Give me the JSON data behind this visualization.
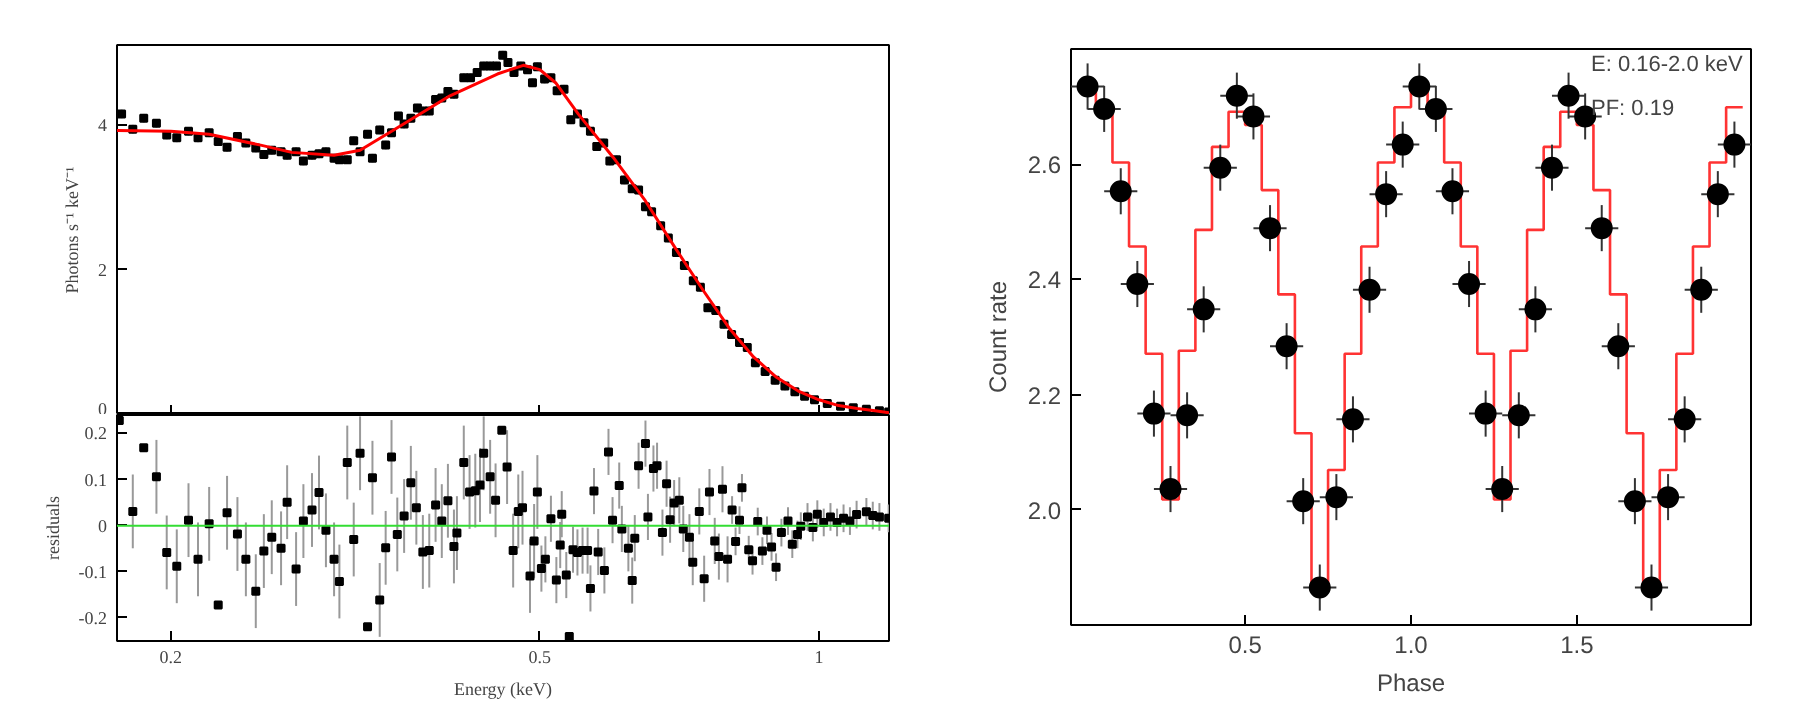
{
  "chart_data": [
    {
      "type": "scatter",
      "ylabel": "Photons s⁻¹ keV⁻¹",
      "log": "x",
      "xlim": [
        0.175,
        1.19
      ],
      "ylim": [
        0,
        5.1
      ],
      "xticks": [
        {
          "value": 0.2,
          "label": null
        },
        {
          "value": 0.5,
          "label": null
        },
        {
          "value": 1,
          "label": null
        }
      ],
      "yticks": [
        0,
        2,
        4
      ],
      "tick_labels": "y",
      "series": [
        {
          "marker": "square",
          "color": "#000000",
          "x": [
            0.177,
            0.182,
            0.187,
            0.193,
            0.198,
            0.203,
            0.209,
            0.214,
            0.22,
            0.225,
            0.23,
            0.236,
            0.241,
            0.247,
            0.252,
            0.257,
            0.263,
            0.267,
            0.273,
            0.278,
            0.284,
            0.289,
            0.294,
            0.3,
            0.304,
            0.31,
            0.315,
            0.32,
            0.326,
            0.33,
            0.336,
            0.341,
            0.346,
            0.352,
            0.357,
            0.363,
            0.369,
            0.374,
            0.38,
            0.386,
            0.392,
            0.398,
            0.404,
            0.414,
            0.421,
            0.428,
            0.435,
            0.442,
            0.449,
            0.456,
            0.462,
            0.469,
            0.477,
            0.485,
            0.491,
            0.497,
            0.506,
            0.514,
            0.522,
            0.531,
            0.54,
            0.549,
            0.558,
            0.567,
            0.576,
            0.586,
            0.595,
            0.605,
            0.617,
            0.629,
            0.639,
            0.65,
            0.66,
            0.675,
            0.688,
            0.702,
            0.716,
            0.732,
            0.745,
            0.759,
            0.774,
            0.79,
            0.805,
            0.821,
            0.837,
            0.854,
            0.875,
            0.897,
            0.919,
            0.942,
            0.965,
            0.989,
            1.021,
            1.055,
            1.089,
            1.125,
            1.162,
            1.189
          ],
          "values": [
            4.15,
            3.94,
            4.09,
            4.02,
            3.86,
            3.82,
            3.91,
            3.82,
            3.89,
            3.77,
            3.69,
            3.84,
            3.75,
            3.68,
            3.59,
            3.65,
            3.63,
            3.58,
            3.63,
            3.5,
            3.58,
            3.6,
            3.63,
            3.54,
            3.52,
            3.52,
            3.78,
            3.63,
            3.87,
            3.54,
            3.93,
            3.72,
            3.89,
            4.12,
            4.01,
            4.09,
            4.23,
            4.19,
            4.19,
            4.35,
            4.37,
            4.46,
            4.42,
            4.65,
            4.65,
            4.72,
            4.81,
            4.81,
            4.81,
            4.96,
            4.86,
            4.72,
            4.81,
            4.76,
            4.58,
            4.8,
            4.63,
            4.65,
            4.47,
            4.49,
            4.07,
            4.15,
            4.03,
            3.91,
            3.7,
            3.75,
            3.5,
            3.52,
            3.24,
            3.12,
            3.1,
            2.87,
            2.8,
            2.61,
            2.44,
            2.24,
            2.06,
            1.85,
            1.76,
            1.48,
            1.44,
            1.25,
            1.11,
            1.0,
            0.93,
            0.72,
            0.6,
            0.48,
            0.4,
            0.32,
            0.26,
            0.21,
            0.16,
            0.12,
            0.1,
            0.08,
            0.06,
            0.04
          ],
          "errors": [
            0.06,
            0.06,
            0.06,
            0.06,
            0.06,
            0.06,
            0.06,
            0.06,
            0.06,
            0.06,
            0.06,
            0.06,
            0.06,
            0.06,
            0.06,
            0.06,
            0.06,
            0.06,
            0.06,
            0.06,
            0.06,
            0.06,
            0.06,
            0.06,
            0.06,
            0.06,
            0.06,
            0.06,
            0.06,
            0.06,
            0.06,
            0.06,
            0.06,
            0.06,
            0.06,
            0.06,
            0.06,
            0.06,
            0.06,
            0.06,
            0.06,
            0.06,
            0.06,
            0.06,
            0.06,
            0.06,
            0.06,
            0.06,
            0.06,
            0.06,
            0.06,
            0.06,
            0.06,
            0.06,
            0.06,
            0.06,
            0.06,
            0.06,
            0.06,
            0.06,
            0.06,
            0.06,
            0.06,
            0.06,
            0.06,
            0.06,
            0.06,
            0.06,
            0.06,
            0.06,
            0.06,
            0.06,
            0.06,
            0.06,
            0.06,
            0.06,
            0.06,
            0.06,
            0.06,
            0.06,
            0.06,
            0.06,
            0.06,
            0.06,
            0.06,
            0.06,
            0.06,
            0.06,
            0.06,
            0.06,
            0.03,
            0.03,
            0.03,
            0.03,
            0.03,
            0.03,
            0.03,
            0.03
          ]
        },
        {
          "type": "line",
          "color": "#ff0000",
          "x": [
            0.175,
            0.2,
            0.22,
            0.25,
            0.27,
            0.3,
            0.32,
            0.35,
            0.4,
            0.45,
            0.48,
            0.5,
            0.52,
            0.55,
            0.6,
            0.65,
            0.7,
            0.75,
            0.8,
            0.85,
            0.9,
            0.95,
            1.0,
            1.05,
            1.1,
            1.15,
            1.19
          ],
          "values": [
            3.92,
            3.91,
            3.87,
            3.72,
            3.62,
            3.58,
            3.65,
            3.95,
            4.4,
            4.7,
            4.82,
            4.76,
            4.58,
            4.15,
            3.55,
            2.95,
            2.3,
            1.72,
            1.2,
            0.8,
            0.52,
            0.33,
            0.21,
            0.13,
            0.09,
            0.06,
            0.03
          ]
        }
      ]
    },
    {
      "type": "scatter",
      "xlabel": "Energy (keV)",
      "ylabel": "residuals",
      "log": "x",
      "xlim": [
        0.175,
        1.19
      ],
      "ylim": [
        -0.25,
        0.24
      ],
      "xticks": [
        0.2,
        0.5,
        1
      ],
      "yticks": [
        -0.2,
        -0.1,
        0,
        0.1,
        0.2
      ],
      "ref_lines": [
        {
          "axis": "y",
          "value": 0,
          "color": "#33dd33"
        }
      ],
      "series": [
        {
          "marker": "square",
          "color": "#000000",
          "x": [
            0.176,
            0.182,
            0.187,
            0.193,
            0.198,
            0.203,
            0.209,
            0.214,
            0.22,
            0.225,
            0.23,
            0.236,
            0.241,
            0.247,
            0.252,
            0.257,
            0.263,
            0.267,
            0.273,
            0.278,
            0.284,
            0.289,
            0.294,
            0.3,
            0.304,
            0.31,
            0.315,
            0.32,
            0.326,
            0.33,
            0.336,
            0.341,
            0.346,
            0.351,
            0.357,
            0.363,
            0.368,
            0.374,
            0.38,
            0.386,
            0.392,
            0.398,
            0.404,
            0.407,
            0.414,
            0.42,
            0.426,
            0.431,
            0.435,
            0.442,
            0.448,
            0.455,
            0.461,
            0.468,
            0.474,
            0.479,
            0.488,
            0.493,
            0.497,
            0.502,
            0.507,
            0.514,
            0.521,
            0.526,
            0.528,
            0.534,
            0.538,
            0.543,
            0.549,
            0.556,
            0.563,
            0.567,
            0.572,
            0.578,
            0.587,
            0.593,
            0.599,
            0.609,
            0.613,
            0.623,
            0.629,
            0.633,
            0.639,
            0.65,
            0.654,
            0.663,
            0.669,
            0.678,
            0.685,
            0.691,
            0.698,
            0.707,
            0.714,
            0.725,
            0.731,
            0.743,
            0.752,
            0.762,
            0.772,
            0.78,
            0.787,
            0.797,
            0.806,
            0.813,
            0.821,
            0.826,
            0.84,
            0.848,
            0.859,
            0.869,
            0.879,
            0.889,
            0.899,
            0.911,
            0.926,
            0.936,
            0.948,
            0.956,
            0.972,
            0.985,
            0.996,
            1.012,
            1.029,
            1.046,
            1.063,
            1.08,
            1.098,
            1.125,
            1.143,
            1.162,
            1.189
          ],
          "values": [
            0.228,
            0.031,
            0.169,
            0.106,
            -0.058,
            -0.088,
            0.012,
            -0.073,
            0.004,
            -0.172,
            0.028,
            -0.018,
            -0.073,
            -0.142,
            -0.055,
            -0.025,
            -0.049,
            0.051,
            -0.094,
            0.01,
            0.034,
            0.072,
            -0.01,
            -0.073,
            -0.121,
            0.137,
            -0.03,
            0.157,
            -0.219,
            0.104,
            -0.161,
            -0.048,
            0.149,
            -0.019,
            0.021,
            0.093,
            0.039,
            -0.057,
            -0.054,
            0.045,
            0.01,
            0.054,
            -0.045,
            -0.016,
            0.137,
            0.073,
            0.076,
            0.088,
            0.157,
            0.106,
            0.055,
            0.207,
            0.127,
            -0.054,
            0.031,
            0.039,
            -0.109,
            -0.033,
            0.073,
            -0.093,
            -0.073,
            0.015,
            -0.118,
            -0.042,
            0.025,
            -0.107,
            -0.24,
            -0.052,
            -0.058,
            -0.054,
            -0.054,
            -0.136,
            0.075,
            -0.057,
            -0.097,
            0.16,
            0.012,
            0.087,
            -0.007,
            -0.049,
            -0.119,
            -0.027,
            0.13,
            0.178,
            0.019,
            0.124,
            0.13,
            -0.015,
            0.091,
            0.013,
            0.049,
            0.055,
            -0.007,
            -0.025,
            -0.079,
            0.031,
            -0.115,
            0.073,
            -0.033,
            -0.067,
            0.079,
            -0.073,
            0.034,
            -0.034,
            0.012,
            0.082,
            -0.052,
            -0.076,
            0.009,
            -0.055,
            -0.01,
            -0.046,
            -0.09,
            -0.015,
            0.01,
            -0.04,
            -0.019,
            -0.001,
            0.019,
            -0.004,
            0.025,
            0.007,
            0.019,
            0.007,
            0.016,
            0.01,
            0.024,
            0.03,
            0.022,
            0.019,
            0.016
          ],
          "errors": [
            null,
            0.08,
            null,
            0.08,
            0.08,
            0.08,
            0.08,
            0.08,
            0.08,
            null,
            0.08,
            0.08,
            0.08,
            0.08,
            0.08,
            0.08,
            0.08,
            0.08,
            0.08,
            0.08,
            0.08,
            0.08,
            0.08,
            0.08,
            0.08,
            0.08,
            0.08,
            0.08,
            null,
            0.08,
            0.08,
            0.08,
            0.08,
            0.08,
            0.08,
            0.08,
            0.08,
            0.08,
            0.08,
            0.08,
            0.08,
            0.08,
            0.08,
            0.08,
            0.08,
            0.08,
            0.08,
            0.08,
            0.08,
            0.08,
            0.08,
            null,
            0.08,
            0.08,
            0.08,
            0.08,
            0.08,
            0.08,
            0.08,
            0.05,
            0.05,
            0.05,
            0.05,
            0.05,
            0.05,
            0.05,
            null,
            0.05,
            0.05,
            0.05,
            0.05,
            0.05,
            0.05,
            0.05,
            0.05,
            0.05,
            0.05,
            0.05,
            0.05,
            0.05,
            0.05,
            0.05,
            0.05,
            0.05,
            0.05,
            0.05,
            0.05,
            0.05,
            0.05,
            0.05,
            0.05,
            0.05,
            0.05,
            0.05,
            0.05,
            0.05,
            0.05,
            0.05,
            0.05,
            0.05,
            0.05,
            0.05,
            0.03,
            0.03,
            0.03,
            0.03,
            0.03,
            0.03,
            0.03,
            0.03,
            0.03,
            0.03,
            0.03,
            0.03,
            0.03,
            0.03,
            0.03,
            0.03,
            0.03,
            0.03,
            0.03,
            0.03,
            0.03,
            0.03,
            0.03,
            0.03,
            0.03,
            0.03,
            0.03,
            0.03,
            0.03
          ]
        }
      ]
    },
    {
      "type": "scatter",
      "xlabel": "Phase",
      "ylabel": "Count rate",
      "xlim": [
        -0.025,
        2.025
      ],
      "ylim": [
        1.8,
        2.8
      ],
      "xticks": [
        0.5,
        {
          "value": 1,
          "label": "1.0"
        },
        1.5
      ],
      "yticks": [
        {
          "value": 2,
          "label": "2.0"
        },
        2.2,
        2.4,
        2.6
      ],
      "annotations": [
        "E: 0.16-2.0 keV",
        "PF: 0.19"
      ],
      "series": [
        {
          "type": "step",
          "color": "#ff3333",
          "x": [
            0,
            0.05,
            0.1,
            0.15,
            0.2,
            0.25,
            0.3,
            0.35,
            0.4,
            0.45,
            0.5,
            0.55,
            0.6,
            0.65,
            0.7,
            0.75,
            0.8,
            0.85,
            0.9,
            0.95,
            1.0,
            1.05,
            1.1,
            1.15,
            1.2,
            1.25,
            1.3,
            1.35,
            1.4,
            1.45,
            1.5,
            1.55,
            1.6,
            1.65,
            1.7,
            1.75,
            1.8,
            1.85,
            1.9,
            1.95,
            2.0
          ],
          "values": [
            2.733,
            2.696,
            2.603,
            2.457,
            2.271,
            2.018,
            2.276,
            2.486,
            2.63,
            2.691,
            2.668,
            2.555,
            2.374,
            2.133,
            1.865,
            2.069,
            2.271,
            2.457,
            2.603,
            2.699,
            2.733,
            2.696,
            2.603,
            2.457,
            2.271,
            2.018,
            2.276,
            2.486,
            2.63,
            2.691,
            2.668,
            2.555,
            2.374,
            2.133,
            1.865,
            2.069,
            2.271,
            2.457,
            2.603,
            2.699,
            2.699
          ]
        },
        {
          "marker": "circle",
          "color": "#000000",
          "x": [
            0.025,
            0.075,
            0.125,
            0.175,
            0.225,
            0.275,
            0.325,
            0.375,
            0.425,
            0.475,
            0.525,
            0.575,
            0.625,
            0.675,
            0.725,
            0.775,
            0.825,
            0.875,
            0.925,
            0.975,
            1.025,
            1.075,
            1.125,
            1.175,
            1.225,
            1.275,
            1.325,
            1.375,
            1.425,
            1.475,
            1.525,
            1.575,
            1.625,
            1.675,
            1.725,
            1.775,
            1.825,
            1.875,
            1.925,
            1.975
          ],
          "values": [
            2.735,
            2.696,
            2.553,
            2.392,
            2.167,
            2.036,
            2.164,
            2.348,
            2.594,
            2.719,
            2.683,
            2.489,
            2.284,
            2.015,
            1.865,
            2.022,
            2.157,
            2.382,
            2.548,
            2.634,
            2.735,
            2.696,
            2.553,
            2.392,
            2.167,
            2.036,
            2.164,
            2.348,
            2.594,
            2.719,
            2.683,
            2.489,
            2.284,
            2.015,
            1.865,
            2.022,
            2.157,
            2.382,
            2.548,
            2.634
          ],
          "errors": [
            0.04,
            0.04,
            0.04,
            0.04,
            0.04,
            0.04,
            0.04,
            0.04,
            0.04,
            0.04,
            0.04,
            0.04,
            0.04,
            0.04,
            0.04,
            0.04,
            0.04,
            0.04,
            0.04,
            0.04,
            0.04,
            0.04,
            0.04,
            0.04,
            0.04,
            0.04,
            0.04,
            0.04,
            0.04,
            0.04,
            0.04,
            0.04,
            0.04,
            0.04,
            0.04,
            0.04,
            0.04,
            0.04,
            0.04,
            0.04
          ],
          "xerrors": [
            0.05,
            0.05,
            0.05,
            0.05,
            0.05,
            0.05,
            0.05,
            0.05,
            0.05,
            0.05,
            0.05,
            0.05,
            0.05,
            0.05,
            0.05,
            0.05,
            0.05,
            0.05,
            0.05,
            0.05,
            0.05,
            0.05,
            0.05,
            0.05,
            0.05,
            0.05,
            0.05,
            0.05,
            0.05,
            0.05,
            0.05,
            0.05,
            0.05,
            0.05,
            0.05,
            0.05,
            0.05,
            0.05,
            0.05,
            0.05
          ]
        }
      ]
    }
  ]
}
